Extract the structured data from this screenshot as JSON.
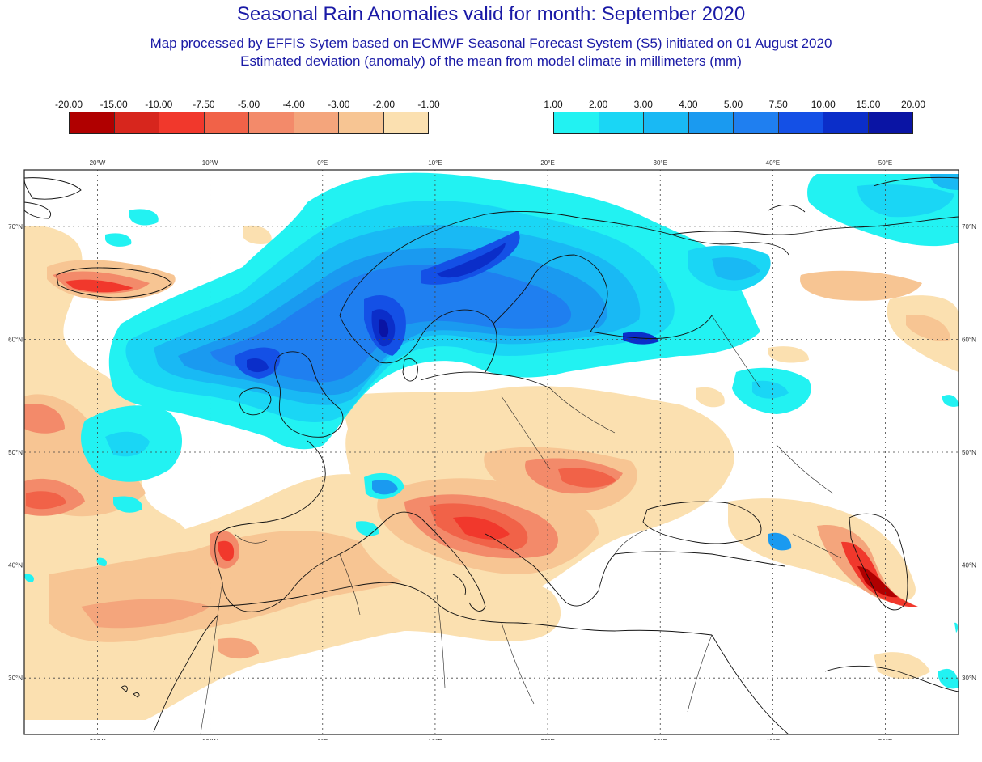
{
  "title": "Seasonal Rain Anomalies valid for month: September 2020",
  "subtitle": "Map processed by EFFIS Sytem based on ECMWF Seasonal Forecast System (S5) initiated on 01 August 2020",
  "subtitle2": "Estimated deviation (anomaly) of the mean from model climate in millimeters (mm)",
  "legend_negative": {
    "labels": [
      "-20.00",
      "-15.00",
      "-10.00",
      "-7.50",
      "-5.00",
      "-4.00",
      "-3.00",
      "-2.00",
      "-1.00"
    ],
    "colors": [
      "#b00000",
      "#d7261d",
      "#f1382c",
      "#f16248",
      "#f38a6a",
      "#f4a57c",
      "#f7c593",
      "#fbe0b0"
    ]
  },
  "legend_positive": {
    "labels": [
      "1.00",
      "2.00",
      "3.00",
      "4.00",
      "5.00",
      "7.50",
      "10.00",
      "15.00",
      "20.00"
    ],
    "colors": [
      "#22f2f2",
      "#1ad6f5",
      "#19b9f4",
      "#1a9af0",
      "#1f7ff0",
      "#1450e6",
      "#0b2ec9",
      "#0a14a4"
    ]
  },
  "map": {
    "lon_labels": [
      "20°W",
      "10°W",
      "0°E",
      "10°E",
      "20°E",
      "30°E",
      "40°E",
      "50°E"
    ],
    "lat_labels": [
      "70°N",
      "60°N",
      "50°N",
      "40°N",
      "30°N"
    ],
    "lon_values": [
      -20,
      -10,
      0,
      10,
      20,
      30,
      40,
      50
    ],
    "lat_values": [
      70,
      60,
      50,
      40,
      30
    ],
    "extent": {
      "lon_min": -26.5,
      "lon_max": 56.5,
      "lat_min": 25,
      "lat_max": 75
    }
  }
}
